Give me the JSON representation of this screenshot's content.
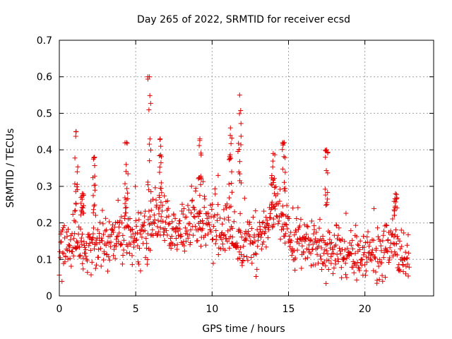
{
  "chart_data": {
    "type": "scatter",
    "title": "Day 265 of 2022, SRMTID for receiver ecsd",
    "xlabel": "GPS time / hours",
    "ylabel": "SRMTID / TECUs",
    "xlim": [
      0,
      24.5
    ],
    "ylim": [
      0,
      0.7
    ],
    "xticks": [
      0,
      5,
      10,
      15,
      20
    ],
    "yticks": [
      0,
      0.1,
      0.2,
      0.3,
      0.4,
      0.5,
      0.6,
      0.7
    ],
    "xtick_labels": [
      "0",
      "5",
      "10",
      "15",
      "20"
    ],
    "ytick_labels": [
      "0",
      "0.1",
      "0.2",
      "0.3",
      "0.4",
      "0.5",
      "0.6",
      "0.7"
    ],
    "grid": true,
    "marker": "+",
    "color": "#e00000",
    "x_extent_hours": [
      0,
      22.9
    ],
    "point_interval_hours": 0.025,
    "baseline_profile": {
      "x": [
        0,
        1,
        2,
        3,
        4,
        5,
        6,
        7,
        8,
        9,
        10,
        11,
        12,
        13,
        14,
        15,
        16,
        17,
        18,
        19,
        20,
        21,
        22,
        22.9
      ],
      "y": [
        0.12,
        0.15,
        0.14,
        0.15,
        0.16,
        0.15,
        0.19,
        0.2,
        0.18,
        0.21,
        0.19,
        0.17,
        0.15,
        0.14,
        0.25,
        0.18,
        0.14,
        0.13,
        0.12,
        0.11,
        0.12,
        0.12,
        0.13,
        0.11
      ]
    },
    "spike_clusters": [
      {
        "x": 1.1,
        "peak": 0.45
      },
      {
        "x": 1.5,
        "peak": 0.28
      },
      {
        "x": 2.3,
        "peak": 0.38
      },
      {
        "x": 4.4,
        "peak": 0.42
      },
      {
        "x": 5.9,
        "peak": 0.6
      },
      {
        "x": 6.6,
        "peak": 0.43
      },
      {
        "x": 9.2,
        "peak": 0.43
      },
      {
        "x": 11.2,
        "peak": 0.46
      },
      {
        "x": 11.8,
        "peak": 0.55
      },
      {
        "x": 14.0,
        "peak": 0.39
      },
      {
        "x": 14.7,
        "peak": 0.42
      },
      {
        "x": 17.5,
        "peak": 0.4
      },
      {
        "x": 22.0,
        "peak": 0.28
      }
    ]
  }
}
